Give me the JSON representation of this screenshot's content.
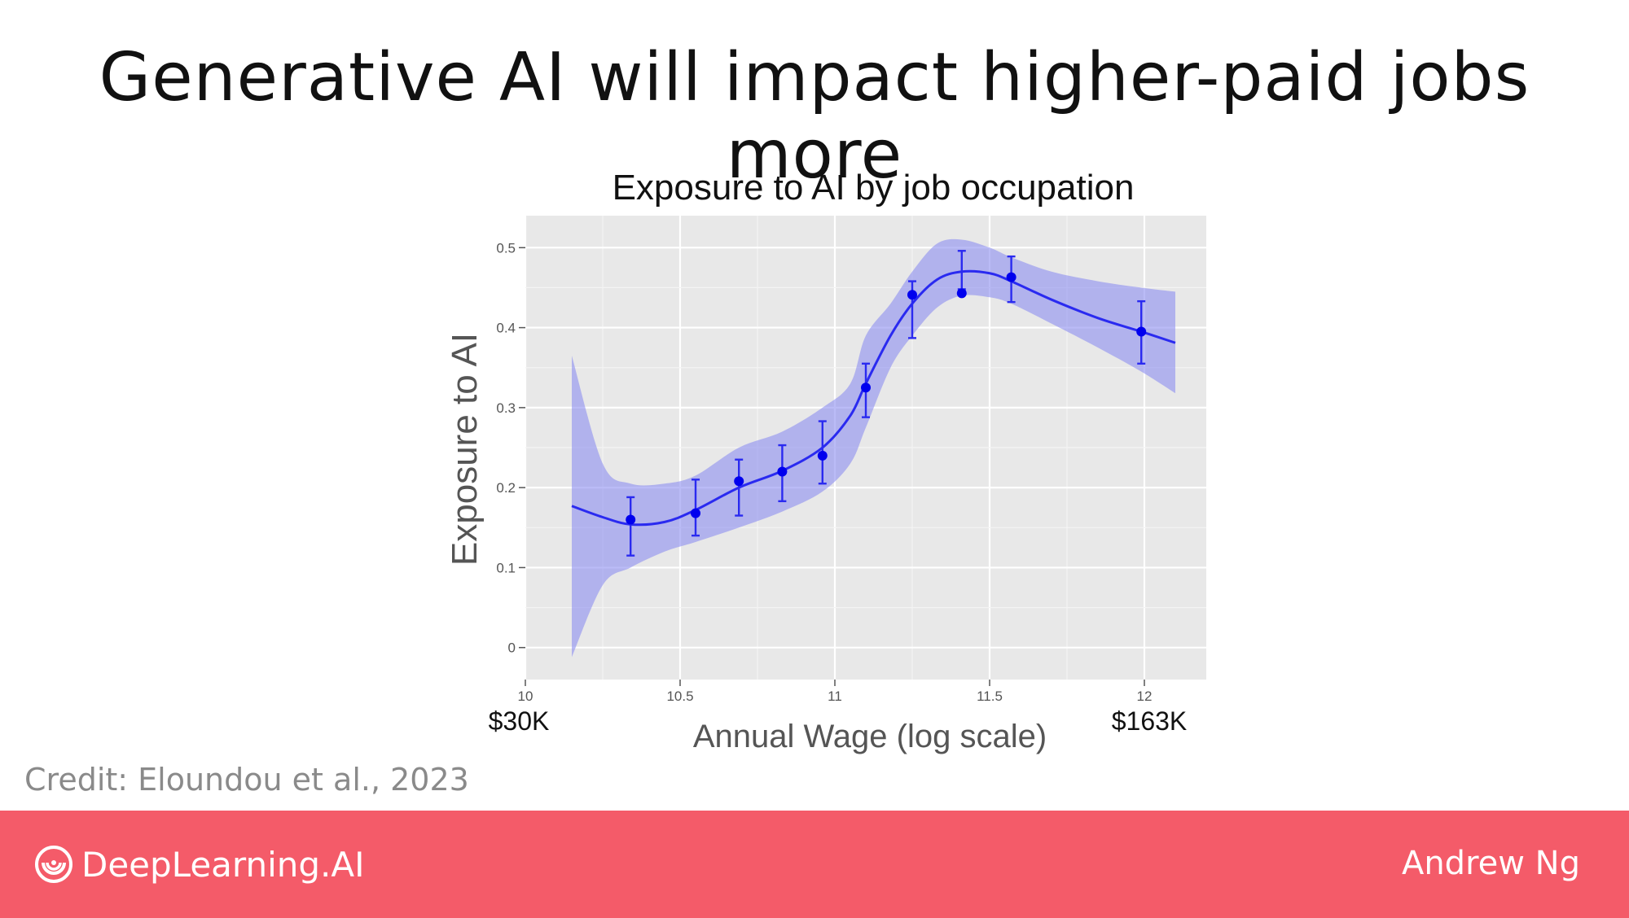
{
  "slide": {
    "title": "Generative AI will impact higher-paid jobs more",
    "credit": "Credit: Eloundou et al., 2023"
  },
  "footer": {
    "brand": "DeepLearning.AI",
    "author": "Andrew Ng",
    "brand_icon": "deeplearning-ai-logo-icon",
    "background_color": "#f45b69"
  },
  "chart_data": {
    "type": "line",
    "title": "Exposure to AI by job occupation",
    "xlabel": "Annual Wage (log scale)",
    "ylabel": "Exposure to AI",
    "xlim": [
      10,
      12.2
    ],
    "ylim": [
      -0.04,
      0.54
    ],
    "x_ticks": [
      10,
      10.5,
      11,
      11.5,
      12
    ],
    "x_tick_labels": [
      "10",
      "10.5",
      "11",
      "11.5",
      "12"
    ],
    "y_ticks": [
      0,
      0.1,
      0.2,
      0.3,
      0.4,
      0.5
    ],
    "y_tick_labels": [
      "0",
      "0.1",
      "0.2",
      "0.3",
      "0.4",
      "0.5"
    ],
    "wage_annotations": [
      {
        "x": 10,
        "label": "$30K"
      },
      {
        "x": 12,
        "label": "$163K"
      }
    ],
    "grid": true,
    "background_color": "#e8e8e8",
    "line_color": "#2a2af0",
    "band_color": "#8f91f0",
    "point_color": "#0000ee",
    "series": [
      {
        "kind": "binned-mean-with-error-bars",
        "points": [
          {
            "x": 10.34,
            "y": 0.16,
            "lo": 0.115,
            "hi": 0.188
          },
          {
            "x": 10.55,
            "y": 0.168,
            "lo": 0.14,
            "hi": 0.21
          },
          {
            "x": 10.69,
            "y": 0.208,
            "lo": 0.165,
            "hi": 0.235
          },
          {
            "x": 10.83,
            "y": 0.22,
            "lo": 0.183,
            "hi": 0.253
          },
          {
            "x": 10.96,
            "y": 0.24,
            "lo": 0.205,
            "hi": 0.283
          },
          {
            "x": 11.1,
            "y": 0.325,
            "lo": 0.288,
            "hi": 0.355
          },
          {
            "x": 11.25,
            "y": 0.441,
            "lo": 0.387,
            "hi": 0.458
          },
          {
            "x": 11.41,
            "y": 0.443,
            "lo": 0.448,
            "hi": 0.496
          },
          {
            "x": 11.57,
            "y": 0.463,
            "lo": 0.432,
            "hi": 0.489
          },
          {
            "x": 11.99,
            "y": 0.395,
            "lo": 0.355,
            "hi": 0.433
          }
        ]
      },
      {
        "kind": "smoothed-fit",
        "x": [
          10.15,
          10.25,
          10.34,
          10.45,
          10.55,
          10.69,
          10.83,
          10.96,
          11.05,
          11.1,
          11.18,
          11.25,
          11.33,
          11.41,
          11.5,
          11.57,
          11.7,
          11.85,
          11.99,
          12.1
        ],
        "y": [
          0.177,
          0.163,
          0.154,
          0.157,
          0.172,
          0.2,
          0.221,
          0.25,
          0.29,
          0.33,
          0.39,
          0.43,
          0.46,
          0.47,
          0.468,
          0.458,
          0.435,
          0.412,
          0.395,
          0.381
        ],
        "band_lo": [
          -0.012,
          0.078,
          0.1,
          0.12,
          0.132,
          0.15,
          0.17,
          0.195,
          0.23,
          0.275,
          0.35,
          0.39,
          0.425,
          0.44,
          0.438,
          0.43,
          0.405,
          0.375,
          0.345,
          0.318
        ],
        "band_hi": [
          0.365,
          0.23,
          0.205,
          0.205,
          0.215,
          0.25,
          0.27,
          0.3,
          0.33,
          0.39,
          0.43,
          0.47,
          0.505,
          0.51,
          0.5,
          0.488,
          0.47,
          0.458,
          0.45,
          0.445
        ]
      }
    ]
  }
}
